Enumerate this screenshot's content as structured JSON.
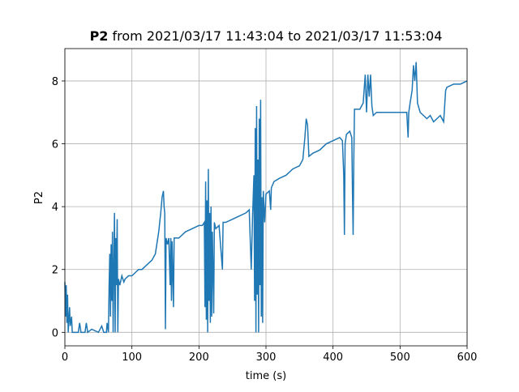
{
  "chart_data": {
    "type": "line",
    "title_bold": "P2",
    "title": "from 2021/03/17 11:43:04 to 2021/03/17 11:53:04",
    "xlabel": "time (s)",
    "ylabel": "P2",
    "xlim": [
      0,
      600
    ],
    "ylim": [
      -0.43,
      9.03
    ],
    "xticks": [
      0,
      100,
      200,
      300,
      400,
      500,
      600
    ],
    "yticks": [
      0,
      2,
      4,
      6,
      8
    ],
    "grid": true,
    "series": [
      {
        "color": "#1f77b4",
        "x": [
          0,
          1,
          2,
          3,
          4,
          5,
          7,
          8,
          10,
          11,
          20,
          22,
          24,
          30,
          32,
          34,
          40,
          50,
          55,
          58,
          62,
          63,
          65,
          66,
          67,
          68,
          69,
          70,
          71,
          72,
          73,
          74,
          75,
          76,
          77,
          78,
          79,
          80,
          82,
          85,
          88,
          90,
          95,
          100,
          105,
          110,
          115,
          120,
          125,
          130,
          135,
          140,
          143,
          145,
          147,
          148,
          149,
          150,
          151,
          153,
          155,
          157,
          158,
          159,
          160,
          162,
          163,
          170,
          180,
          190,
          200,
          205,
          208,
          209,
          210,
          211,
          212,
          213,
          214,
          215,
          216,
          217,
          218,
          219,
          220,
          222,
          223,
          225,
          230,
          235,
          236,
          240,
          250,
          260,
          270,
          275,
          278,
          280,
          282,
          283,
          284,
          285,
          286,
          287,
          288,
          289,
          290,
          291,
          292,
          293,
          294,
          295,
          296,
          298,
          300,
          305,
          307,
          308,
          312,
          320,
          330,
          340,
          350,
          355,
          358,
          360,
          362,
          364,
          370,
          380,
          390,
          400,
          410,
          414,
          416,
          417,
          418,
          420,
          425,
          428,
          429,
          430,
          431,
          432,
          440,
          445,
          448,
          450,
          452,
          454,
          456,
          458,
          460,
          465,
          470,
          480,
          490,
          500,
          510,
          512,
          513,
          515,
          518,
          520,
          522,
          524,
          526,
          530,
          535,
          540,
          545,
          550,
          555,
          560,
          565,
          568,
          570,
          580,
          590,
          600
        ],
        "values": [
          1.6,
          0.5,
          1.5,
          0.3,
          1.2,
          0,
          0.8,
          0.2,
          0.5,
          0,
          0,
          0.3,
          0,
          0,
          0.3,
          0,
          0.1,
          0,
          0.2,
          0,
          0,
          0.3,
          0,
          1.5,
          2.5,
          0.5,
          2.8,
          1,
          3.2,
          0,
          2,
          3.8,
          0,
          3,
          1.5,
          3.6,
          0,
          1.7,
          1.5,
          1.8,
          1.6,
          1.7,
          1.8,
          1.8,
          1.9,
          2.0,
          2.0,
          2.1,
          2.2,
          2.3,
          2.5,
          3.2,
          3.8,
          4.3,
          4.5,
          4.0,
          3.8,
          0.1,
          3.0,
          2.8,
          3.0,
          1.5,
          3.0,
          1.0,
          2.9,
          0.8,
          3.0,
          3.0,
          3.2,
          3.3,
          3.4,
          3.4,
          3.5,
          0.8,
          4.8,
          0.4,
          4.2,
          0,
          5.2,
          1.0,
          3.8,
          0.3,
          4.0,
          0.5,
          3.2,
          0.6,
          3.5,
          3.3,
          3.4,
          2.0,
          3.5,
          3.5,
          3.6,
          3.7,
          3.8,
          3.9,
          2.0,
          3.7,
          5.0,
          1.0,
          6.5,
          0,
          7.2,
          1.2,
          5.5,
          0,
          6.8,
          1.5,
          7.4,
          0.5,
          4.3,
          0.3,
          4.5,
          3.5,
          4.4,
          4.5,
          3.9,
          4.6,
          4.8,
          4.9,
          5.0,
          5.2,
          5.3,
          5.5,
          6.2,
          6.8,
          6.6,
          5.6,
          5.7,
          5.8,
          6.0,
          6.1,
          6.2,
          6.1,
          5.0,
          3.1,
          6.0,
          6.3,
          6.4,
          6.2,
          4.5,
          3.1,
          5.5,
          7.1,
          7.1,
          7.3,
          8.2,
          7.0,
          8.2,
          7.5,
          8.2,
          7.2,
          6.9,
          7.0,
          7.0,
          7.0,
          7.0,
          7.0,
          7.0,
          6.2,
          7.0,
          7.3,
          7.7,
          8.5,
          8.0,
          8.6,
          7.3,
          7.0,
          6.9,
          6.8,
          6.9,
          6.7,
          6.8,
          6.9,
          6.7,
          7.7,
          7.8,
          7.9,
          7.9,
          8.0
        ]
      }
    ]
  }
}
